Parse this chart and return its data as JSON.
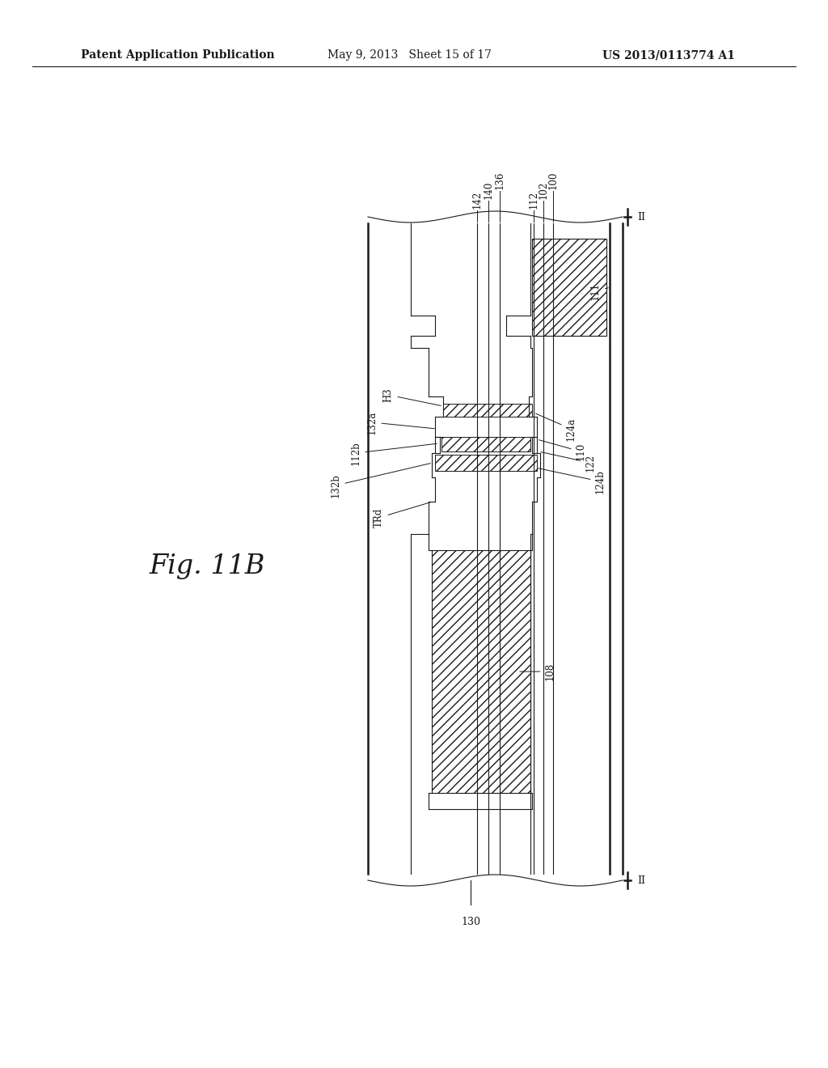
{
  "bg_color": "#ffffff",
  "header_left": "Patent Application Publication",
  "header_mid": "May 9, 2013   Sheet 15 of 17",
  "header_right": "US 2013/0113774 A1",
  "fig_label": "Fig. 11B",
  "lc": "#1a1a1a"
}
